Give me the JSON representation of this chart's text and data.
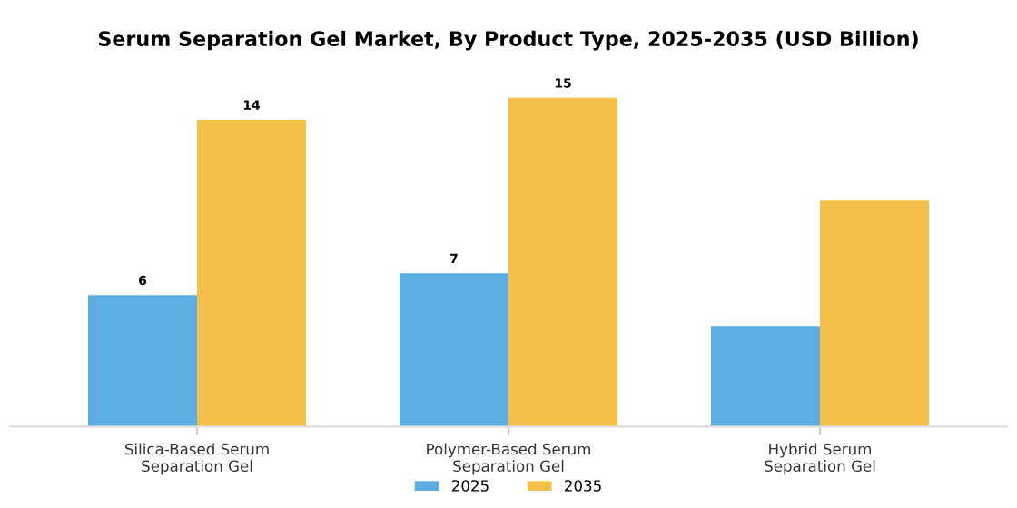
{
  "chart_data": {
    "type": "bar",
    "title": "Serum Separation Gel Market, By Product Type, 2025-2035 (USD Billion)",
    "categories": [
      "Silica-Based Serum\nSeparation Gel",
      "Polymer-Based Serum\nSeparation Gel",
      "Hybrid Serum\nSeparation Gel"
    ],
    "series": [
      {
        "name": "2025",
        "color": "#5dade2",
        "values": [
          6,
          7,
          4.6
        ],
        "value_labels": [
          "6",
          "7",
          null
        ]
      },
      {
        "name": "2035",
        "color": "#f5c04a",
        "values": [
          14,
          15,
          10.3
        ],
        "value_labels": [
          "14",
          "15",
          null
        ]
      }
    ],
    "legend": "bottom",
    "grid": false,
    "tick_labels": "x"
  }
}
